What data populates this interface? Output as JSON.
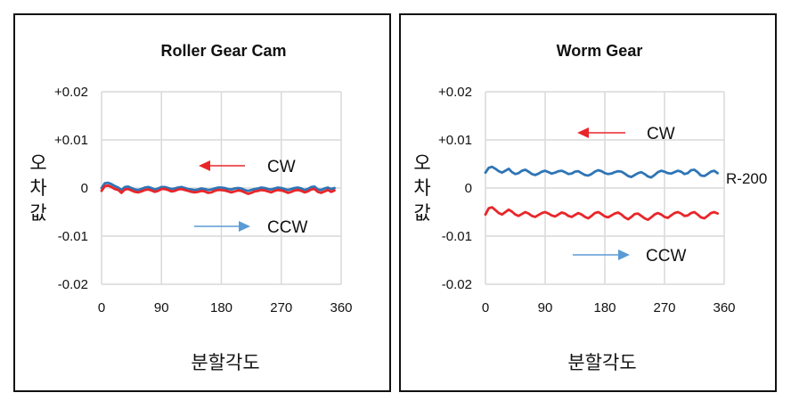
{
  "chart_data": [
    {
      "type": "line",
      "title": "Roller Gear Cam",
      "xlabel": "분할각도",
      "ylabel": "오차값",
      "xlim": [
        0,
        360
      ],
      "ylim": [
        -0.02,
        0.02
      ],
      "x_ticks": [
        "0",
        "90",
        "180",
        "270",
        "360"
      ],
      "y_ticks": [
        "+0.02",
        "+0.01",
        "0",
        "-0.01",
        "-0.02"
      ],
      "grid": true,
      "annotations": [
        {
          "label": "CW",
          "arrow": "left",
          "color": "#e8262a"
        },
        {
          "label": "CCW",
          "arrow": "right",
          "color": "#5b9bd5"
        }
      ],
      "series": [
        {
          "color": "#2e75b6",
          "x": [
            0,
            5,
            10,
            15,
            20,
            25,
            30,
            35,
            40,
            45,
            50,
            55,
            60,
            65,
            70,
            75,
            80,
            85,
            90,
            95,
            100,
            105,
            110,
            115,
            120,
            125,
            130,
            135,
            140,
            145,
            150,
            155,
            160,
            165,
            170,
            175,
            180,
            185,
            190,
            195,
            200,
            205,
            210,
            215,
            220,
            225,
            230,
            235,
            240,
            245,
            250,
            255,
            260,
            265,
            270,
            275,
            280,
            285,
            290,
            295,
            300,
            305,
            310,
            315,
            320,
            325,
            330,
            335,
            340,
            345,
            350
          ],
          "values": [
            0.0,
            0.001,
            0.0011,
            0.0008,
            0.0004,
            0.0001,
            -0.0004,
            0.0002,
            0.0003,
            0.0,
            -0.0003,
            -0.0004,
            -0.0002,
            0.0001,
            0.0002,
            0.0,
            -0.0003,
            -0.0001,
            0.0002,
            0.0002,
            0.0,
            -0.0002,
            -0.0001,
            0.0001,
            0.0002,
            0.0,
            -0.0002,
            -0.0003,
            -0.0004,
            -0.0003,
            -0.0001,
            -0.0002,
            -0.0004,
            -0.0003,
            -0.0001,
            0.0001,
            0.0001,
            0.0,
            -0.0002,
            -0.0003,
            -0.0001,
            0.0,
            -0.0001,
            -0.0004,
            -0.0006,
            -0.0004,
            -0.0002,
            -0.0001,
            0.0001,
            0.0,
            -0.0002,
            -0.0003,
            -0.0001,
            0.0001,
            0.0,
            -0.0002,
            -0.0004,
            -0.0002,
            0.0,
            0.0001,
            -0.0001,
            -0.0004,
            -0.0002,
            0.0002,
            0.0003,
            -0.0003,
            -0.0004,
            -0.0001,
            0.0001,
            -0.0002,
            0.0
          ]
        },
        {
          "color": "#e8262a",
          "x": [
            0,
            5,
            10,
            15,
            20,
            25,
            30,
            35,
            40,
            45,
            50,
            55,
            60,
            65,
            70,
            75,
            80,
            85,
            90,
            95,
            100,
            105,
            110,
            115,
            120,
            125,
            130,
            135,
            140,
            145,
            150,
            155,
            160,
            165,
            170,
            175,
            180,
            185,
            190,
            195,
            200,
            205,
            210,
            215,
            220,
            225,
            230,
            235,
            240,
            245,
            250,
            255,
            260,
            265,
            270,
            275,
            280,
            285,
            290,
            295,
            300,
            305,
            310,
            315,
            320,
            325,
            330,
            335,
            340,
            345,
            350
          ],
          "values": [
            -0.0006,
            0.0004,
            0.0005,
            0.0002,
            -0.0002,
            -0.0004,
            -0.001,
            -0.0003,
            -0.0002,
            -0.0005,
            -0.0008,
            -0.0009,
            -0.0007,
            -0.0004,
            -0.0003,
            -0.0005,
            -0.0008,
            -0.0006,
            -0.0002,
            -0.0002,
            -0.0004,
            -0.0007,
            -0.0006,
            -0.0003,
            -0.0002,
            -0.0004,
            -0.0006,
            -0.0008,
            -0.0009,
            -0.0008,
            -0.0006,
            -0.0007,
            -0.001,
            -0.0009,
            -0.0006,
            -0.0004,
            -0.0004,
            -0.0005,
            -0.0007,
            -0.0009,
            -0.0007,
            -0.0005,
            -0.0006,
            -0.0009,
            -0.0012,
            -0.001,
            -0.0007,
            -0.0006,
            -0.0004,
            -0.0005,
            -0.0007,
            -0.0009,
            -0.0006,
            -0.0004,
            -0.0005,
            -0.0007,
            -0.001,
            -0.0008,
            -0.0005,
            -0.0004,
            -0.0006,
            -0.0009,
            -0.0007,
            -0.0003,
            -0.0002,
            -0.0008,
            -0.001,
            -0.0007,
            -0.0004,
            -0.0008,
            -0.0005
          ]
        }
      ]
    },
    {
      "type": "line",
      "title": "Worm Gear",
      "xlabel": "분할각도",
      "ylabel": "오차값",
      "xlim": [
        0,
        360
      ],
      "ylim": [
        -0.02,
        0.02
      ],
      "x_ticks": [
        "0",
        "90",
        "180",
        "270",
        "360"
      ],
      "y_ticks": [
        "+0.02",
        "+0.01",
        "0",
        "-0.01",
        "-0.02"
      ],
      "grid": true,
      "annotations": [
        {
          "label": "CW",
          "arrow": "left",
          "color": "#e8262a"
        },
        {
          "label": "CCW",
          "arrow": "right",
          "color": "#5b9bd5"
        }
      ],
      "series": [
        {
          "name": "R-200",
          "color": "#2e75b6",
          "x": [
            0,
            5,
            10,
            15,
            20,
            25,
            30,
            35,
            40,
            45,
            50,
            55,
            60,
            65,
            70,
            75,
            80,
            85,
            90,
            95,
            100,
            105,
            110,
            115,
            120,
            125,
            130,
            135,
            140,
            145,
            150,
            155,
            160,
            165,
            170,
            175,
            180,
            185,
            190,
            195,
            200,
            205,
            210,
            215,
            220,
            225,
            230,
            235,
            240,
            245,
            250,
            255,
            260,
            265,
            270,
            275,
            280,
            285,
            290,
            295,
            300,
            305,
            310,
            315,
            320,
            325,
            330,
            335,
            340,
            345,
            350
          ],
          "values": [
            0.0032,
            0.0042,
            0.0044,
            0.004,
            0.0035,
            0.0032,
            0.0036,
            0.004,
            0.0033,
            0.0029,
            0.0031,
            0.0036,
            0.0038,
            0.0034,
            0.0029,
            0.0027,
            0.003,
            0.0034,
            0.0036,
            0.0033,
            0.003,
            0.0032,
            0.0035,
            0.0036,
            0.0033,
            0.0029,
            0.003,
            0.0034,
            0.0035,
            0.0031,
            0.0027,
            0.0026,
            0.0029,
            0.0034,
            0.0037,
            0.0035,
            0.0031,
            0.0029,
            0.003,
            0.0033,
            0.0035,
            0.0034,
            0.003,
            0.0025,
            0.0023,
            0.0027,
            0.0031,
            0.0033,
            0.0029,
            0.0024,
            0.0022,
            0.0027,
            0.0033,
            0.0036,
            0.0034,
            0.0031,
            0.003,
            0.0033,
            0.0036,
            0.0034,
            0.0029,
            0.0031,
            0.0037,
            0.0038,
            0.0033,
            0.0026,
            0.0025,
            0.0029,
            0.0034,
            0.0036,
            0.0031
          ]
        },
        {
          "color": "#e8262a",
          "x": [
            0,
            5,
            10,
            15,
            20,
            25,
            30,
            35,
            40,
            45,
            50,
            55,
            60,
            65,
            70,
            75,
            80,
            85,
            90,
            95,
            100,
            105,
            110,
            115,
            120,
            125,
            130,
            135,
            140,
            145,
            150,
            155,
            160,
            165,
            170,
            175,
            180,
            185,
            190,
            195,
            200,
            205,
            210,
            215,
            220,
            225,
            230,
            235,
            240,
            245,
            250,
            255,
            260,
            265,
            270,
            275,
            280,
            285,
            290,
            295,
            300,
            305,
            310,
            315,
            320,
            325,
            330,
            335,
            340,
            345,
            350
          ],
          "values": [
            -0.0055,
            -0.0042,
            -0.004,
            -0.0046,
            -0.0052,
            -0.0055,
            -0.005,
            -0.0045,
            -0.0049,
            -0.0055,
            -0.0058,
            -0.0054,
            -0.005,
            -0.0053,
            -0.0058,
            -0.006,
            -0.0056,
            -0.0052,
            -0.005,
            -0.0053,
            -0.0057,
            -0.0059,
            -0.0055,
            -0.0051,
            -0.0053,
            -0.0058,
            -0.006,
            -0.0056,
            -0.0052,
            -0.0055,
            -0.006,
            -0.0063,
            -0.0058,
            -0.0052,
            -0.005,
            -0.0054,
            -0.0059,
            -0.0061,
            -0.0057,
            -0.0053,
            -0.0051,
            -0.0055,
            -0.0061,
            -0.0065,
            -0.006,
            -0.0054,
            -0.0053,
            -0.0058,
            -0.0063,
            -0.0066,
            -0.0061,
            -0.0055,
            -0.0052,
            -0.0055,
            -0.006,
            -0.0062,
            -0.0057,
            -0.0052,
            -0.005,
            -0.0053,
            -0.0058,
            -0.0057,
            -0.0052,
            -0.005,
            -0.0055,
            -0.0061,
            -0.0063,
            -0.0058,
            -0.0052,
            -0.005,
            -0.0053
          ]
        }
      ]
    }
  ]
}
